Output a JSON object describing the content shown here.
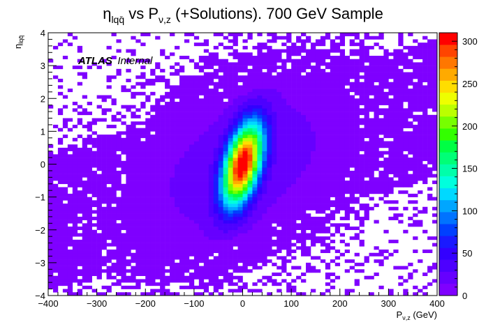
{
  "chart_data": {
    "type": "heatmap",
    "title": {
      "eta_symbol": "η",
      "eta_subscript": "lqq̄",
      "middle": " vs P",
      "p_subscript": "ν,z",
      "rest": " (+Solutions). 700 GeV Sample"
    },
    "xlabel": {
      "base": "P",
      "subscript": "ν,z",
      "unit": " (GeV)"
    },
    "ylabel": {
      "base": "η",
      "subscript": "lqq̄"
    },
    "xlim": [
      -400,
      400
    ],
    "ylim": [
      -4,
      4
    ],
    "zlim": [
      0,
      310
    ],
    "x_ticks": [
      -400,
      -300,
      -200,
      -100,
      0,
      100,
      200,
      300,
      400
    ],
    "x_tick_labels": [
      "−400",
      "−300",
      "−200",
      "−100",
      "0",
      "100",
      "200",
      "300",
      "400"
    ],
    "y_ticks": [
      -4,
      -3,
      -2,
      -1,
      0,
      1,
      2,
      3,
      4
    ],
    "y_tick_labels": [
      "−4",
      "−3",
      "−2",
      "−1",
      "0",
      "1",
      "2",
      "3",
      "4"
    ],
    "z_ticks": [
      0,
      50,
      100,
      150,
      200,
      250,
      300
    ],
    "z_tick_labels": [
      "0",
      "50",
      "100",
      "150",
      "200",
      "250",
      "300"
    ],
    "bins": {
      "nx": 80,
      "ny": 80
    },
    "peak": {
      "x": 0,
      "y": 0,
      "value": 305
    },
    "correlation_direction": "positive",
    "palette": [
      "#7f00ff",
      "#6600ff",
      "#4d00ff",
      "#3300ff",
      "#1a1aff",
      "#0040ff",
      "#0073ff",
      "#00a6ff",
      "#00d9ff",
      "#00ffdd",
      "#00ffaa",
      "#00ff77",
      "#00ff44",
      "#33ff00",
      "#77ff00",
      "#bbff00",
      "#eeff00",
      "#ffdd00",
      "#ffaa00",
      "#ff7700",
      "#ff4400",
      "#ff0000"
    ],
    "annotation": {
      "bold": "ATLAS",
      "normal": "Internal"
    },
    "grid": false,
    "legend": "colorbar-right"
  }
}
